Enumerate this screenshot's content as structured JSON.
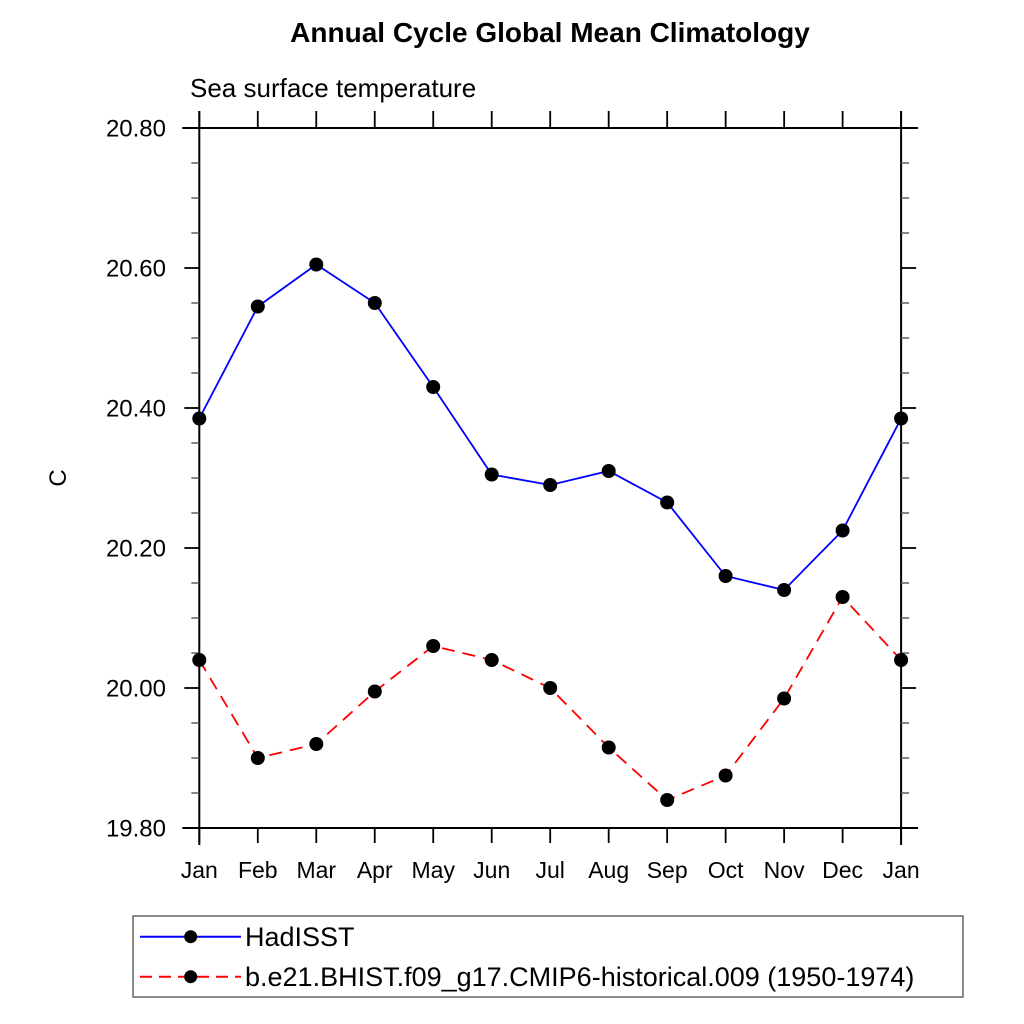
{
  "chart_data": {
    "type": "line",
    "title": "Annual Cycle Global Mean Climatology",
    "subtitle": "Sea surface temperature",
    "ylabel": "C",
    "xlabel": "",
    "grid": false,
    "x_categories": [
      "Jan",
      "Feb",
      "Mar",
      "Apr",
      "May",
      "Jun",
      "Jul",
      "Aug",
      "Sep",
      "Oct",
      "Nov",
      "Dec",
      "Jan"
    ],
    "y_axis": {
      "min": 19.8,
      "max": 20.8,
      "major_step": 0.2,
      "minor_step": 0.05,
      "tick_labels": [
        "19.80",
        "20.00",
        "20.20",
        "20.40",
        "20.60",
        "20.80"
      ]
    },
    "series": [
      {
        "name": "HadISST",
        "color": "#0000ff",
        "style": "solid",
        "marker": "filled-circle",
        "marker_color": "#000000",
        "values": [
          20.385,
          20.545,
          20.605,
          20.55,
          20.43,
          20.305,
          20.29,
          20.31,
          20.265,
          20.16,
          20.14,
          20.225,
          20.385
        ]
      },
      {
        "name": "b.e21.BHIST.f09_g17.CMIP6-historical.009 (1950-1974)",
        "color": "#ff0000",
        "style": "dashed",
        "marker": "filled-circle",
        "marker_color": "#000000",
        "values": [
          20.04,
          19.9,
          19.92,
          19.995,
          20.06,
          20.04,
          20.0,
          19.915,
          19.84,
          19.875,
          19.985,
          20.13,
          20.04
        ]
      }
    ],
    "legend_position": "bottom-left-box"
  }
}
